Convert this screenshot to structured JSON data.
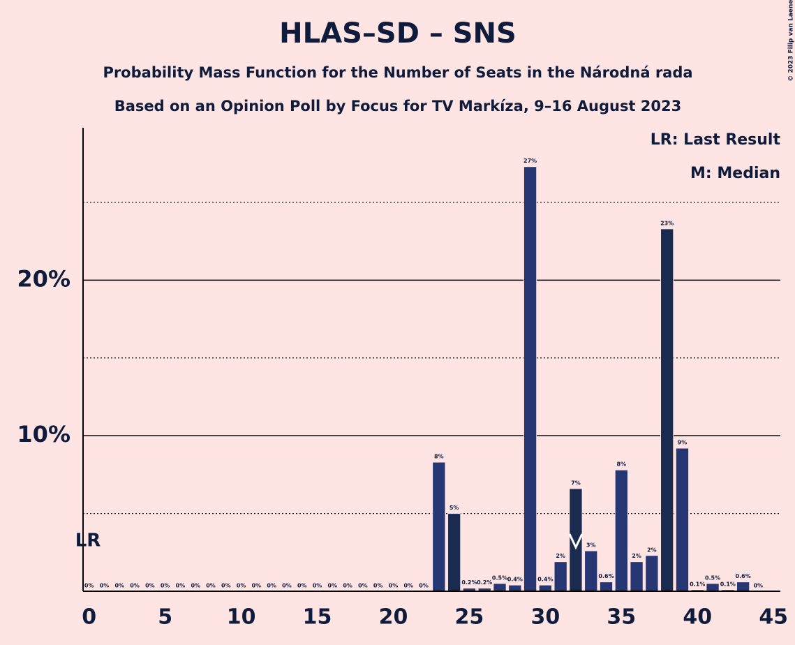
{
  "chart_data": {
    "type": "bar",
    "title": "HLAS–SD – SNS",
    "subtitles": [
      "Probability Mass Function for the Number of Seats in the Národná rada",
      "Based on an Opinion Poll by Focus for TV Markíza, 9–16 August 2023"
    ],
    "x": [
      0,
      1,
      2,
      3,
      4,
      5,
      6,
      7,
      8,
      9,
      10,
      11,
      12,
      13,
      14,
      15,
      16,
      17,
      18,
      19,
      20,
      21,
      22,
      23,
      24,
      25,
      26,
      27,
      28,
      29,
      30,
      31,
      32,
      33,
      34,
      35,
      36,
      37,
      38,
      39,
      40,
      41,
      42,
      43,
      44
    ],
    "values": [
      0,
      0,
      0,
      0,
      0,
      0,
      0,
      0,
      0,
      0,
      0,
      0,
      0,
      0,
      0,
      0,
      0,
      0,
      0,
      0,
      0,
      0,
      0,
      8.3,
      5.0,
      0.2,
      0.2,
      0.5,
      0.4,
      27.3,
      0.4,
      1.9,
      6.6,
      2.6,
      0.6,
      7.8,
      1.9,
      2.3,
      23.3,
      9.2,
      0.1,
      0.5,
      0.1,
      0.6,
      0
    ],
    "value_labels": [
      "0%",
      "0%",
      "0%",
      "0%",
      "0%",
      "0%",
      "0%",
      "0%",
      "0%",
      "0%",
      "0%",
      "0%",
      "0%",
      "0%",
      "0%",
      "0%",
      "0%",
      "0%",
      "0%",
      "0%",
      "0%",
      "0%",
      "0%",
      "8%",
      "5%",
      "0.2%",
      "0.2%",
      "0.5%",
      "0.4%",
      "27%",
      "0.4%",
      "2%",
      "7%",
      "3%",
      "0.6%",
      "8%",
      "2%",
      "2%",
      "23%",
      "9%",
      "0.1%",
      "0.5%",
      "0.1%",
      "0.6%",
      "0%"
    ],
    "color": "#253673",
    "highlight_x": [
      24,
      32,
      38
    ],
    "highlight_color": "#1b2b4f",
    "xlim": [
      -0.4,
      45.45
    ],
    "xticks": [
      0,
      5,
      10,
      15,
      20,
      25,
      30,
      35,
      40,
      45
    ],
    "ylim": [
      0,
      29.8
    ],
    "yticks": [
      {
        "value": 10,
        "label": "10%"
      },
      {
        "value": 20,
        "label": "20%"
      }
    ],
    "minor_yticks": [
      5,
      15,
      25
    ],
    "grid": true,
    "last_result": {
      "x": 0,
      "label": "LR"
    },
    "median": 32,
    "legend": [
      "LR: Last Result",
      "M: Median"
    ],
    "copyright": "© 2023 Filip van Laenen"
  }
}
